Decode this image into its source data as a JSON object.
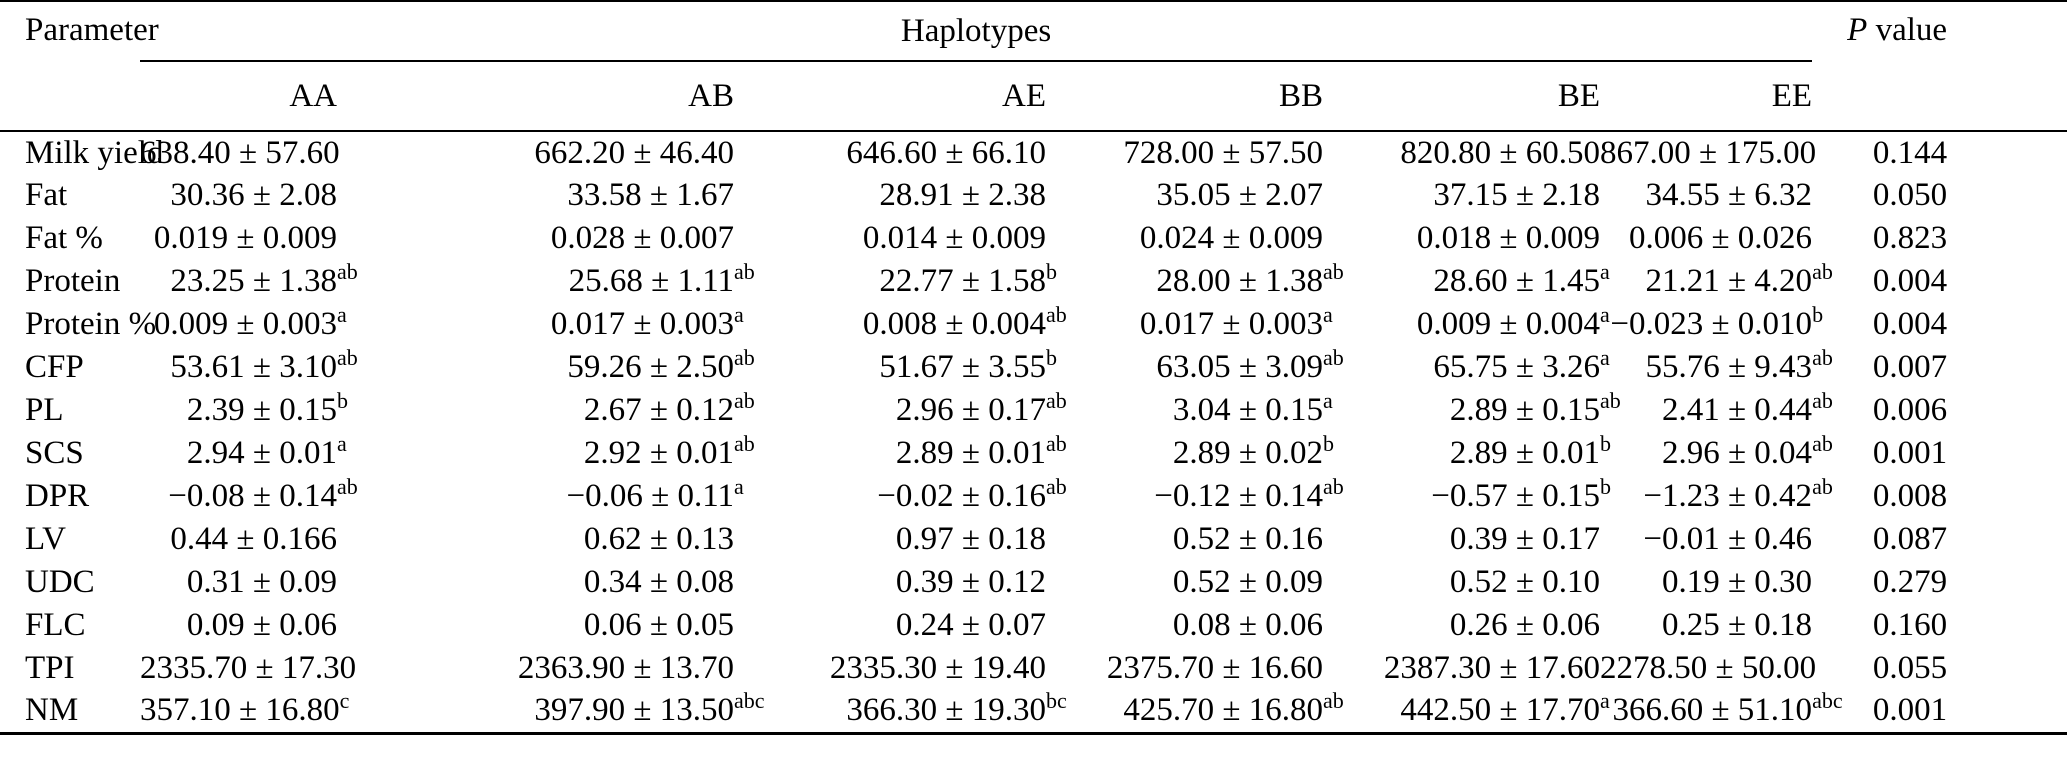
{
  "table": {
    "param_header": "Parameter",
    "group_header": "Haplotypes",
    "p_header": {
      "italic": "P",
      "rest": " value"
    },
    "columns": [
      "AA",
      "AB",
      "AE",
      "BB",
      "BE",
      "EE"
    ],
    "rows": [
      {
        "param": "Milk yield",
        "cells": [
          {
            "v": "638.40 ± 57.60",
            "s": ""
          },
          {
            "v": "662.20 ± 46.40",
            "s": ""
          },
          {
            "v": "646.60 ± 66.10",
            "s": ""
          },
          {
            "v": "728.00 ± 57.50",
            "s": ""
          },
          {
            "v": "820.80 ± 60.50",
            "s": ""
          },
          {
            "v": "867.00 ± 175.00",
            "s": ""
          }
        ],
        "p": "0.144"
      },
      {
        "param": "Fat",
        "cells": [
          {
            "v": "30.36 ± 2.08",
            "s": ""
          },
          {
            "v": "33.58 ± 1.67",
            "s": ""
          },
          {
            "v": "28.91 ± 2.38",
            "s": ""
          },
          {
            "v": "35.05 ± 2.07",
            "s": ""
          },
          {
            "v": "37.15 ± 2.18",
            "s": ""
          },
          {
            "v": "34.55 ± 6.32",
            "s": ""
          }
        ],
        "p": "0.050"
      },
      {
        "param": "Fat %",
        "cells": [
          {
            "v": "0.019 ± 0.009",
            "s": ""
          },
          {
            "v": "0.028 ± 0.007",
            "s": ""
          },
          {
            "v": "0.014 ± 0.009",
            "s": ""
          },
          {
            "v": "0.024 ± 0.009",
            "s": ""
          },
          {
            "v": "0.018 ± 0.009",
            "s": ""
          },
          {
            "v": "0.006 ± 0.026",
            "s": ""
          }
        ],
        "p": "0.823"
      },
      {
        "param": "Protein",
        "cells": [
          {
            "v": "23.25 ± 1.38",
            "s": "ab"
          },
          {
            "v": "25.68 ± 1.11",
            "s": "ab"
          },
          {
            "v": "22.77 ± 1.58",
            "s": "b"
          },
          {
            "v": "28.00 ± 1.38",
            "s": "ab"
          },
          {
            "v": "28.60 ± 1.45",
            "s": "a"
          },
          {
            "v": "21.21 ± 4.20",
            "s": "ab"
          }
        ],
        "p": "0.004"
      },
      {
        "param": "Protein %",
        "cells": [
          {
            "v": "0.009 ± 0.003",
            "s": "a"
          },
          {
            "v": "0.017 ± 0.003",
            "s": "a"
          },
          {
            "v": "0.008 ± 0.004",
            "s": "ab"
          },
          {
            "v": "0.017 ± 0.003",
            "s": "a"
          },
          {
            "v": "0.009 ± 0.004",
            "s": "a"
          },
          {
            "v": "−0.023 ± 0.010",
            "s": "b"
          }
        ],
        "p": "0.004"
      },
      {
        "param": "CFP",
        "cells": [
          {
            "v": "53.61 ± 3.10",
            "s": "ab"
          },
          {
            "v": "59.26 ± 2.50",
            "s": "ab"
          },
          {
            "v": "51.67 ± 3.55",
            "s": "b"
          },
          {
            "v": "63.05 ± 3.09",
            "s": "ab"
          },
          {
            "v": "65.75 ± 3.26",
            "s": "a"
          },
          {
            "v": "55.76 ± 9.43",
            "s": "ab"
          }
        ],
        "p": "0.007"
      },
      {
        "param": "PL",
        "cells": [
          {
            "v": "2.39 ± 0.15",
            "s": "b"
          },
          {
            "v": "2.67 ± 0.12",
            "s": "ab"
          },
          {
            "v": "2.96 ± 0.17",
            "s": "ab"
          },
          {
            "v": "3.04 ± 0.15",
            "s": "a"
          },
          {
            "v": "2.89 ± 0.15",
            "s": "ab"
          },
          {
            "v": "2.41 ± 0.44",
            "s": "ab"
          }
        ],
        "p": "0.006"
      },
      {
        "param": "SCS",
        "cells": [
          {
            "v": "2.94 ± 0.01",
            "s": "a"
          },
          {
            "v": "2.92 ± 0.01",
            "s": "ab"
          },
          {
            "v": "2.89 ± 0.01",
            "s": "ab"
          },
          {
            "v": "2.89 ± 0.02",
            "s": "b"
          },
          {
            "v": "2.89 ± 0.01",
            "s": "b"
          },
          {
            "v": "2.96 ± 0.04",
            "s": "ab"
          }
        ],
        "p": "0.001"
      },
      {
        "param": "DPR",
        "cells": [
          {
            "v": "−0.08 ± 0.14",
            "s": "ab"
          },
          {
            "v": "−0.06 ± 0.11",
            "s": "a"
          },
          {
            "v": "−0.02 ± 0.16",
            "s": "ab"
          },
          {
            "v": "−0.12 ± 0.14",
            "s": "ab"
          },
          {
            "v": "−0.57 ± 0.15",
            "s": "b"
          },
          {
            "v": "−1.23 ± 0.42",
            "s": "ab"
          }
        ],
        "p": "0.008"
      },
      {
        "param": "LV",
        "cells": [
          {
            "v": "0.44 ± 0.166",
            "s": ""
          },
          {
            "v": "0.62 ± 0.13",
            "s": ""
          },
          {
            "v": "0.97 ± 0.18",
            "s": ""
          },
          {
            "v": "0.52 ± 0.16",
            "s": ""
          },
          {
            "v": "0.39 ± 0.17",
            "s": ""
          },
          {
            "v": "−0.01 ± 0.46",
            "s": ""
          }
        ],
        "p": "0.087"
      },
      {
        "param": "UDC",
        "cells": [
          {
            "v": "0.31 ± 0.09",
            "s": ""
          },
          {
            "v": "0.34 ± 0.08",
            "s": ""
          },
          {
            "v": "0.39 ± 0.12",
            "s": ""
          },
          {
            "v": "0.52 ± 0.09",
            "s": ""
          },
          {
            "v": "0.52 ± 0.10",
            "s": ""
          },
          {
            "v": "0.19 ± 0.30",
            "s": ""
          }
        ],
        "p": "0.279"
      },
      {
        "param": "FLC",
        "cells": [
          {
            "v": "0.09 ± 0.06",
            "s": ""
          },
          {
            "v": "0.06 ± 0.05",
            "s": ""
          },
          {
            "v": "0.24 ± 0.07",
            "s": ""
          },
          {
            "v": "0.08 ± 0.06",
            "s": ""
          },
          {
            "v": "0.26 ± 0.06",
            "s": ""
          },
          {
            "v": "0.25 ± 0.18",
            "s": ""
          }
        ],
        "p": "0.160"
      },
      {
        "param": "TPI",
        "cells": [
          {
            "v": "2335.70 ± 17.30",
            "s": ""
          },
          {
            "v": "2363.90 ± 13.70",
            "s": ""
          },
          {
            "v": "2335.30 ± 19.40",
            "s": ""
          },
          {
            "v": "2375.70 ± 16.60",
            "s": ""
          },
          {
            "v": "2387.30 ± 17.60",
            "s": ""
          },
          {
            "v": "2278.50 ± 50.00",
            "s": ""
          }
        ],
        "p": "0.055"
      },
      {
        "param": "NM",
        "cells": [
          {
            "v": "357.10 ± 16.80",
            "s": "c"
          },
          {
            "v": "397.90 ± 13.50",
            "s": "abc"
          },
          {
            "v": "366.30 ± 19.30",
            "s": "bc"
          },
          {
            "v": "425.70 ± 16.80",
            "s": "ab"
          },
          {
            "v": "442.50 ± 17.70",
            "s": "a"
          },
          {
            "v": "366.60 ± 51.10",
            "s": "abc"
          }
        ],
        "p": "0.001"
      }
    ]
  }
}
